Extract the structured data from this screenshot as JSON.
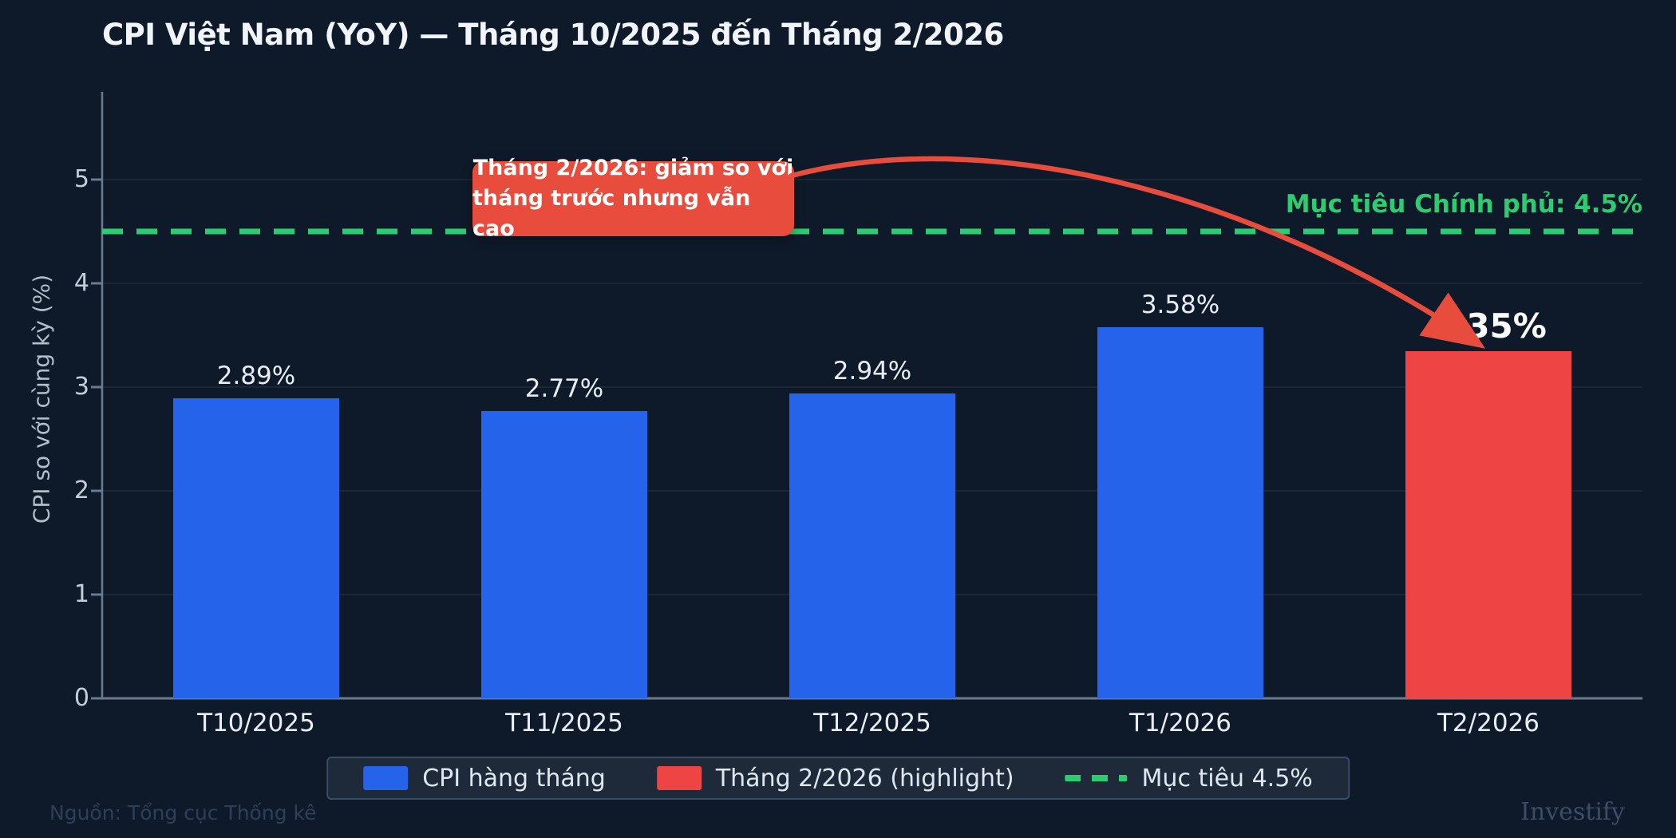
{
  "title": "CPI Việt Nam (YoY) — Tháng 10/2025 đến Tháng 2/2026",
  "y_axis": {
    "label": "CPI so với cùng kỳ (%)",
    "ticks": [
      "0",
      "1",
      "2",
      "3",
      "4",
      "5"
    ]
  },
  "chart_data": {
    "type": "bar",
    "categories": [
      "T10/2025",
      "T11/2025",
      "T12/2025",
      "T1/2026",
      "T2/2026"
    ],
    "values": [
      2.89,
      2.77,
      2.94,
      3.58,
      3.35
    ],
    "value_labels": [
      "2.89%",
      "2.77%",
      "2.94%",
      "3.58%",
      "3.35%"
    ],
    "bar_colors": [
      "#2563eb",
      "#2563eb",
      "#2563eb",
      "#2563eb",
      "#ee4444"
    ],
    "highlight_index": 4,
    "title": "CPI Việt Nam (YoY) — Tháng 10/2025 đến Tháng 2/2026",
    "xlabel": "",
    "ylabel": "CPI so với cùng kỳ (%)",
    "ylim": [
      0,
      5.8
    ],
    "grid": true,
    "legend_position": "bottom",
    "target_line": {
      "value": 4.5,
      "label": "Mục tiêu Chính phủ: 4.5%",
      "color": "#2ecc71",
      "style": "dashed"
    },
    "annotation": {
      "line1": "Tháng 2/2026: giảm so với",
      "line2": "tháng trước nhưng vẫn cao",
      "color": "#e74c3c",
      "arrow_color": "#e74c3c",
      "points_to": "T2/2026"
    }
  },
  "legend": {
    "items": [
      {
        "label": "CPI hàng tháng",
        "color": "#2563eb",
        "type": "swatch"
      },
      {
        "label": "Tháng 2/2026 (highlight)",
        "color": "#ee4444",
        "type": "swatch"
      },
      {
        "label": "Mục tiêu 4.5%",
        "color": "#2ecc71",
        "type": "dashed-line"
      }
    ]
  },
  "footer": {
    "source": "Nguồn: Tổng cục Thống kê",
    "watermark": "Investify"
  },
  "colors": {
    "background": "#0e1a2a",
    "axis": "#6b7a8d",
    "gridline": "#1b2736",
    "bar_blue": "#2563eb",
    "bar_red": "#ee4444",
    "target_green": "#2ecc71",
    "annotation_red": "#e74c3c"
  }
}
